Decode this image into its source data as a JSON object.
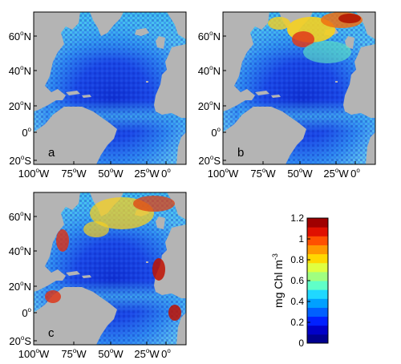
{
  "figure": {
    "panels": [
      {
        "label": "a"
      },
      {
        "label": "b"
      },
      {
        "label": "c"
      }
    ],
    "lat_ticks": [
      "60",
      "40",
      "20",
      "0",
      "20"
    ],
    "lat_suffix": [
      "N",
      "N",
      "N",
      "",
      "S"
    ],
    "lon_ticks": [
      "100",
      "75",
      "50",
      "25",
      "0"
    ],
    "lon_suffix": [
      "W",
      "W",
      "W",
      "W",
      ""
    ],
    "degree_symbol": "o",
    "colors": {
      "ocean_deep": "#1a3ad6",
      "land": "#b4b4b4",
      "frame": "#000000"
    }
  },
  "colorbar": {
    "label_main": "mg Chl m",
    "label_sup": "-3",
    "ticks": [
      "0",
      "0.2",
      "0.4",
      "0.6",
      "0.8",
      "1",
      "1.2"
    ],
    "range": [
      0,
      1.2
    ],
    "colors": [
      "#00008f",
      "#0000c8",
      "#0020ff",
      "#0060ff",
      "#00a0ff",
      "#20d8ff",
      "#60ffc8",
      "#a0ff80",
      "#e0ff40",
      "#ffd800",
      "#ff9800",
      "#ff5000",
      "#e01000",
      "#a00000"
    ]
  }
}
